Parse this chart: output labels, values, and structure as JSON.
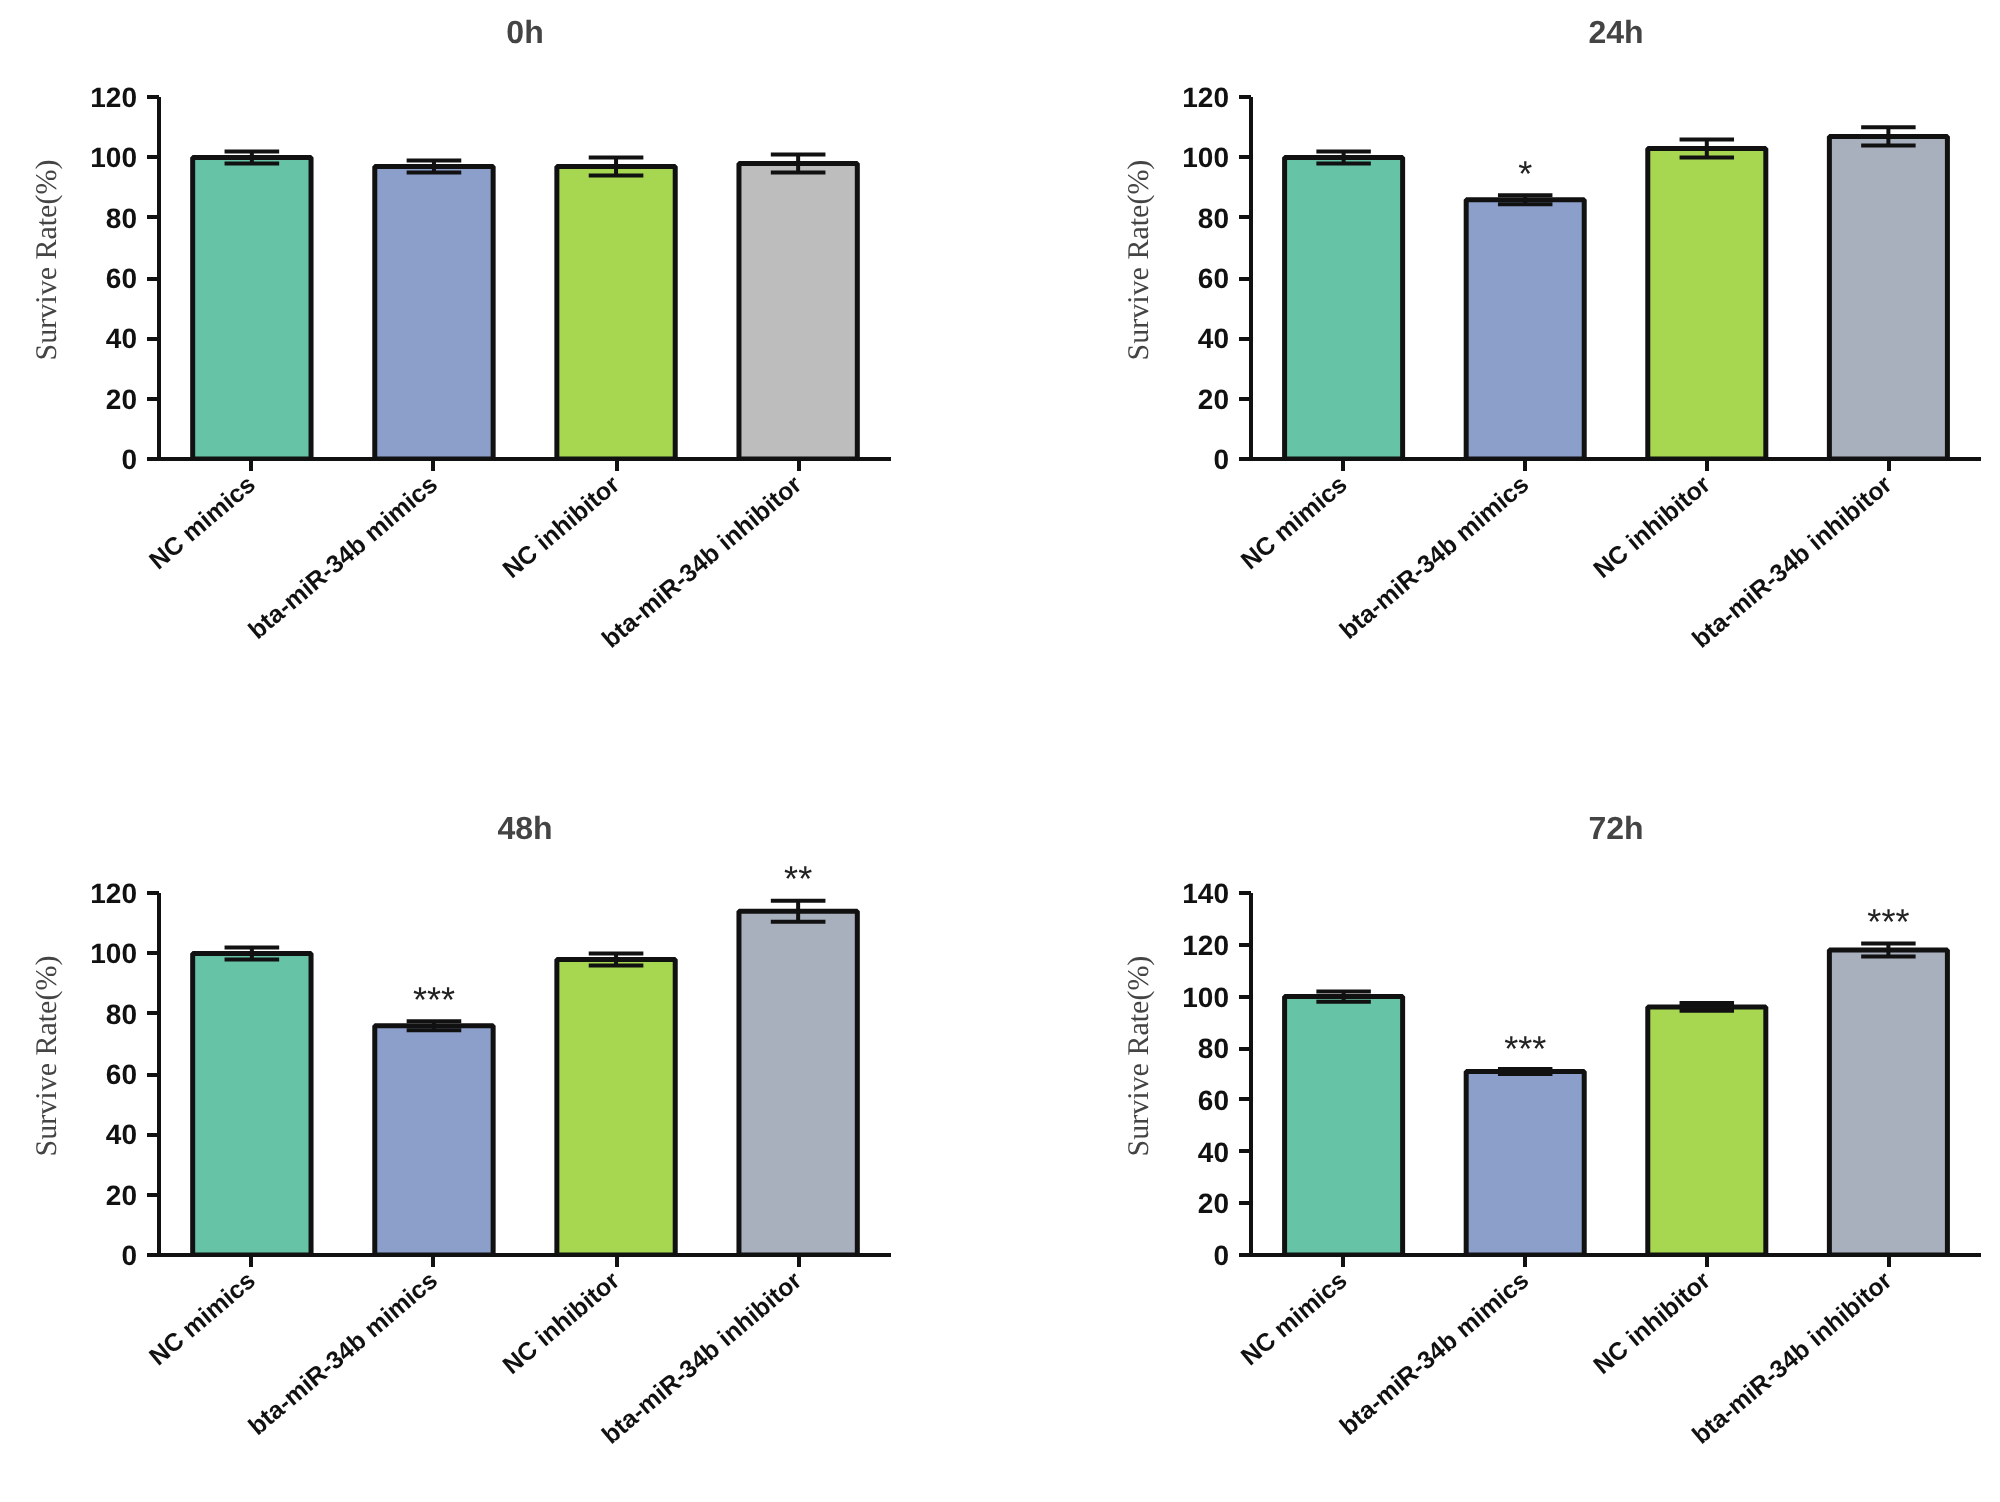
{
  "chart_data": [
    {
      "type": "bar",
      "title": "0h",
      "ylabel": "Survive Rate(%)",
      "categories": [
        "NC mimics",
        "bta-miR-34b mimics",
        "NC inhibitor",
        "bta-miR-34b inhibitor"
      ],
      "values": [
        100,
        97,
        97,
        98
      ],
      "errors": [
        2,
        2,
        3,
        3
      ],
      "colors": [
        "#66c3a6",
        "#8c9fcb",
        "#a7d751",
        "#bdbdbd"
      ],
      "ylim": [
        0,
        120
      ],
      "yticks": [
        0,
        20,
        40,
        60,
        80,
        100,
        120
      ]
    },
    {
      "type": "bar",
      "title": "24h",
      "ylabel": "Survive Rate(%)",
      "categories": [
        "NC mimics",
        "bta-miR-34b mimics",
        "NC inhibitor",
        "bta-miR-34b inhibitor"
      ],
      "values": [
        100,
        86,
        103,
        107
      ],
      "errors": [
        2,
        1.5,
        3,
        3
      ],
      "colors": [
        "#66c3a6",
        "#8c9fcb",
        "#a7d751",
        "#a9b0bd"
      ],
      "ylim": [
        0,
        120
      ],
      "yticks": [
        0,
        20,
        40,
        60,
        80,
        100,
        120
      ],
      "annotations": [
        {
          "text": "*",
          "x": "bta-miR-34b mimics",
          "y": 88
        }
      ]
    },
    {
      "type": "bar",
      "title": "48h",
      "ylabel": "Survive Rate(%)",
      "categories": [
        "NC mimics",
        "bta-miR-34b mimics",
        "NC inhibitor",
        "bta-miR-34b inhibitor"
      ],
      "values": [
        100,
        76,
        98,
        114
      ],
      "errors": [
        2,
        1.5,
        2,
        3.5
      ],
      "colors": [
        "#66c3a6",
        "#8c9fcb",
        "#a7d751",
        "#a9b0bd"
      ],
      "ylim": [
        0,
        120
      ],
      "yticks": [
        0,
        20,
        40,
        60,
        80,
        100,
        120
      ],
      "annotations": [
        {
          "text": "***",
          "x": "bta-miR-34b mimics",
          "y": 78
        },
        {
          "text": "**",
          "x": "bta-miR-34b inhibitor",
          "y": 118
        }
      ]
    },
    {
      "type": "bar",
      "title": "72h",
      "ylabel": "Survive Rate(%)",
      "categories": [
        "NC mimics",
        "bta-miR-34b mimics",
        "NC inhibitor",
        "bta-miR-34b inhibitor"
      ],
      "values": [
        100,
        71,
        96,
        118
      ],
      "errors": [
        2,
        1,
        1.5,
        2.5
      ],
      "colors": [
        "#66c3a6",
        "#8c9fcb",
        "#a7d751",
        "#a9b0bd"
      ],
      "ylim": [
        0,
        140
      ],
      "yticks": [
        0,
        20,
        40,
        60,
        80,
        100,
        120,
        140
      ],
      "annotations": [
        {
          "text": "***",
          "x": "bta-miR-34b mimics",
          "y": 72
        },
        {
          "text": "***",
          "x": "bta-miR-34b inhibitor",
          "y": 121
        }
      ]
    }
  ]
}
